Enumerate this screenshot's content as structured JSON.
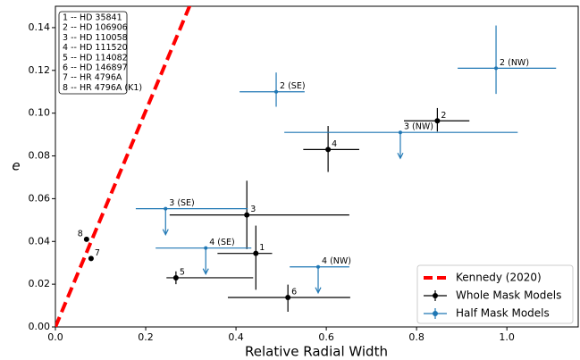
{
  "chart_data": {
    "type": "scatter",
    "x_label": "Relative Radial Width",
    "y_label": "e",
    "xlim": [
      0,
      1.158
    ],
    "ylim": [
      0,
      0.15
    ],
    "xticks": [
      {
        "value": 0,
        "label": "0.0"
      },
      {
        "value": 0.2,
        "label": "0.2"
      },
      {
        "value": 0.4,
        "label": "0.4"
      },
      {
        "value": 0.6,
        "label": "0.6"
      },
      {
        "value": 0.8,
        "label": "0.8"
      },
      {
        "value": 1.0,
        "label": "1.0"
      }
    ],
    "yticks": [
      {
        "value": 0,
        "label": "0.00"
      },
      {
        "value": 0.02,
        "label": "0.02"
      },
      {
        "value": 0.04,
        "label": "0.04"
      },
      {
        "value": 0.06,
        "label": "0.06"
      },
      {
        "value": 0.08,
        "label": "0.08"
      },
      {
        "value": 0.1,
        "label": "0.10"
      },
      {
        "value": 0.12,
        "label": "0.12"
      },
      {
        "value": 0.14,
        "label": "0.14"
      }
    ],
    "grid": false,
    "legend": "lower right",
    "key_box": [
      "1 -- HD 35841",
      "2 -- HD 106906",
      "3 -- HD 110058",
      "4 -- HD 111520",
      "5 -- HD 114082",
      "6 -- HD 146897",
      "7 -- HR 4796A",
      "8 -- HR 4796A (K1)"
    ],
    "series": [
      {
        "name": "Kennedy (2020)",
        "kind": "line",
        "color": "#ff0000",
        "dashed": true,
        "x": [
          0,
          0.3
        ],
        "values": [
          0,
          0.1515
        ]
      },
      {
        "name": "Whole Mask Models",
        "kind": "errorbar",
        "color": "#000000",
        "labels": [
          "1",
          "2",
          "3",
          "4",
          "5",
          "6",
          "7",
          "8"
        ],
        "x": [
          0.444,
          0.846,
          0.424,
          0.604,
          0.267,
          0.515,
          0.079,
          0.069
        ],
        "values": [
          0.0344,
          0.0964,
          0.0524,
          0.083,
          0.023,
          0.0138,
          0.032,
          0.041
        ],
        "xerr_minus": [
          0.085,
          0.074,
          0.171,
          0.055,
          0.021,
          0.133,
          null,
          null
        ],
        "xerr_plus": [
          0.036,
          0.071,
          0.227,
          0.069,
          0.171,
          0.138,
          null,
          null
        ],
        "yerr_minus": [
          0.017,
          0.005,
          0.016,
          0.0105,
          0.003,
          0.0067,
          null,
          null
        ],
        "yerr_plus": [
          0.013,
          0.006,
          0.016,
          0.011,
          0.003,
          0.006,
          null,
          null
        ],
        "upper_limit": [
          false,
          false,
          false,
          false,
          false,
          false,
          false,
          false
        ]
      },
      {
        "name": "Half Mask Models",
        "kind": "errorbar",
        "color": "#1f77b4",
        "labels": [
          "2 (NW)",
          "2 (SE)",
          "3 (NW)",
          "3 (SE)",
          "4 (SE)",
          "4 (NW)"
        ],
        "x": [
          0.976,
          0.489,
          0.764,
          0.244,
          0.333,
          0.582
        ],
        "values": [
          0.121,
          0.11,
          0.091,
          0.0553,
          0.0369,
          0.0281
        ],
        "xerr_minus": [
          0.085,
          0.081,
          0.257,
          0.066,
          0.111,
          0.063
        ],
        "xerr_plus": [
          0.133,
          0.063,
          0.26,
          0.182,
          0.101,
          0.069
        ],
        "yerr_minus": [
          0.012,
          0.007,
          null,
          null,
          null,
          null
        ],
        "yerr_plus": [
          0.02,
          0.009,
          null,
          null,
          null,
          null
        ],
        "upper_limit": [
          false,
          false,
          true,
          true,
          true,
          true
        ]
      }
    ]
  }
}
